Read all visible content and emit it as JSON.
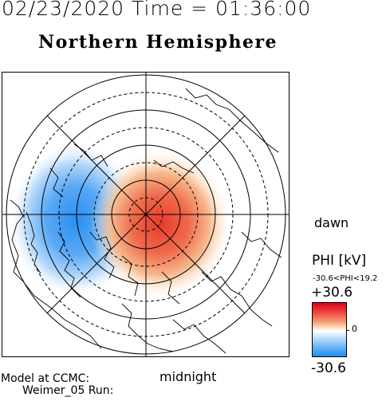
{
  "header": {
    "datetime": "02/23/2020 Time = 01:36:00",
    "hemisphere": "Northern Hemisphere"
  },
  "map": {
    "orientation": {
      "dawn": "dawn",
      "midnight": "midnight"
    },
    "graticule": {
      "latitude_circles_deg": [
        50,
        60,
        70,
        80
      ],
      "meridian_spacing_deg": 45,
      "dashed_circles": true
    },
    "potential_field": {
      "positive_cell": "red",
      "negative_cell": "blue"
    }
  },
  "colorbar": {
    "title": "PHI [kV]",
    "range_text": "-30.6<PHI<19.2",
    "max_label": "+30.6",
    "zero_label": "0",
    "min_label": "-30.6",
    "colors": {
      "max": "#d9001f",
      "mid": "#ffffff",
      "min": "#1f8bf0"
    }
  },
  "footer": {
    "line1": "Model at CCMC:",
    "line2": "Weimer_05 Run:"
  }
}
